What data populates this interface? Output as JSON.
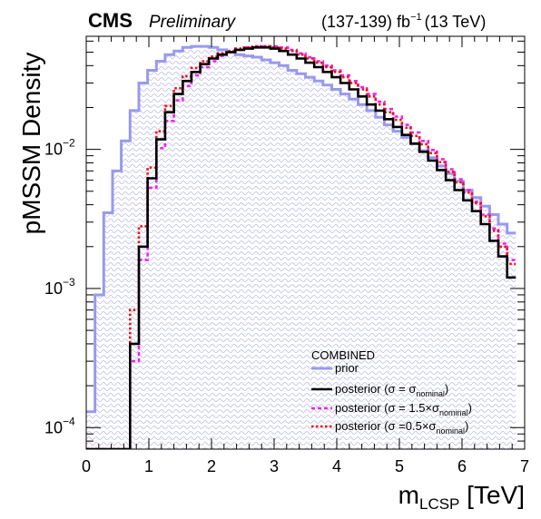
{
  "header": {
    "experiment": "CMS",
    "status": "Preliminary",
    "lumi_value": "(137-139) fb",
    "lumi_exp": "−1",
    "energy": "(13 TeV)"
  },
  "legend": {
    "title": "COMBINED",
    "entries": [
      {
        "key": "prior",
        "text": "prior"
      },
      {
        "key": "nominal",
        "text": "posterior (σ = σ",
        "sub": "nominal",
        "tail": ")"
      },
      {
        "key": "x15",
        "text": "posterior (σ = 1.5×σ",
        "sub": "nominal",
        "tail": ")"
      },
      {
        "key": "x05",
        "text": "posterior (σ =0.5×σ",
        "sub": "nominal",
        "tail": ")"
      }
    ]
  },
  "axes": {
    "xlabel_main": "m",
    "xlabel_sub": "LCSP",
    "xlabel_unit": " [TeV]",
    "ylabel": "pMSSM Density",
    "xticks": [
      "0",
      "1",
      "2",
      "3",
      "4",
      "5",
      "6",
      "7"
    ],
    "yticks": [
      {
        "base": "10",
        "exp": "−4"
      },
      {
        "base": "10",
        "exp": "−3"
      },
      {
        "base": "10",
        "exp": "−2"
      }
    ]
  },
  "chart_data": {
    "type": "step-histogram",
    "x_unit": "TeV",
    "xlim": [
      0,
      7
    ],
    "ylim": [
      7e-05,
      0.065
    ],
    "yscale": "log",
    "bin_width": 0.14,
    "bin_edges_start": 0,
    "series": [
      {
        "key": "prior",
        "name": "prior",
        "color": "#9999ee",
        "style": "solid-filled-hatched",
        "values": [
          0.00013,
          0.0009,
          0.0035,
          0.007,
          0.0115,
          0.019,
          0.03,
          0.037,
          0.043,
          0.048,
          0.051,
          0.054,
          0.055,
          0.055,
          0.054,
          0.052,
          0.05,
          0.048,
          0.047,
          0.046,
          0.044,
          0.042,
          0.04,
          0.037,
          0.035,
          0.033,
          0.031,
          0.029,
          0.027,
          0.025,
          0.023,
          0.021,
          0.019,
          0.017,
          0.015,
          0.0135,
          0.0122,
          0.011,
          0.0098,
          0.0087,
          0.0076,
          0.0067,
          0.0059,
          0.0051,
          0.0045,
          0.0039,
          0.0034,
          0.0029,
          0.0025
        ]
      },
      {
        "key": "nominal",
        "name": "posterior (σ = σnominal)",
        "color": "#000000",
        "style": "solid",
        "values": [
          7e-05,
          7e-05,
          7e-05,
          7e-05,
          7e-05,
          0.0004,
          0.002,
          0.0062,
          0.0118,
          0.0185,
          0.025,
          0.031,
          0.036,
          0.041,
          0.045,
          0.048,
          0.05,
          0.052,
          0.053,
          0.054,
          0.054,
          0.053,
          0.051,
          0.048,
          0.045,
          0.042,
          0.039,
          0.036,
          0.033,
          0.03,
          0.027,
          0.024,
          0.021,
          0.019,
          0.0165,
          0.0145,
          0.0127,
          0.011,
          0.0096,
          0.0083,
          0.0071,
          0.006,
          0.0051,
          0.0043,
          0.0036,
          0.0029,
          0.0022,
          0.0017,
          0.0012
        ]
      },
      {
        "key": "x15",
        "name": "posterior (σ = 1.5×σnominal)",
        "color": "#ee22ee",
        "style": "dashed",
        "values": [
          7e-05,
          7e-05,
          7e-05,
          7e-05,
          7e-05,
          0.0003,
          0.0016,
          0.0053,
          0.0102,
          0.016,
          0.0225,
          0.0285,
          0.034,
          0.039,
          0.043,
          0.047,
          0.05,
          0.052,
          0.054,
          0.055,
          0.055,
          0.055,
          0.054,
          0.052,
          0.049,
          0.046,
          0.043,
          0.04,
          0.037,
          0.034,
          0.031,
          0.028,
          0.025,
          0.022,
          0.0195,
          0.0172,
          0.015,
          0.0132,
          0.0115,
          0.0099,
          0.0085,
          0.0072,
          0.0061,
          0.0051,
          0.0042,
          0.0034,
          0.0027,
          0.0021,
          0.0016
        ]
      },
      {
        "key": "x05",
        "name": "posterior (σ =0.5×σnominal)",
        "color": "#ee1111",
        "style": "dotted",
        "values": [
          7e-05,
          7e-05,
          7e-05,
          7e-05,
          7e-05,
          0.0007,
          0.0028,
          0.0074,
          0.0135,
          0.0205,
          0.0275,
          0.0335,
          0.0385,
          0.043,
          0.0465,
          0.049,
          0.051,
          0.053,
          0.054,
          0.055,
          0.055,
          0.054,
          0.053,
          0.051,
          0.048,
          0.045,
          0.042,
          0.039,
          0.036,
          0.033,
          0.03,
          0.027,
          0.024,
          0.021,
          0.0185,
          0.0163,
          0.0143,
          0.0125,
          0.0109,
          0.0094,
          0.0081,
          0.0069,
          0.0058,
          0.0049,
          0.0041,
          0.0033,
          0.0026,
          0.002,
          0.0015
        ]
      }
    ],
    "legend_position": "bottom-right"
  }
}
